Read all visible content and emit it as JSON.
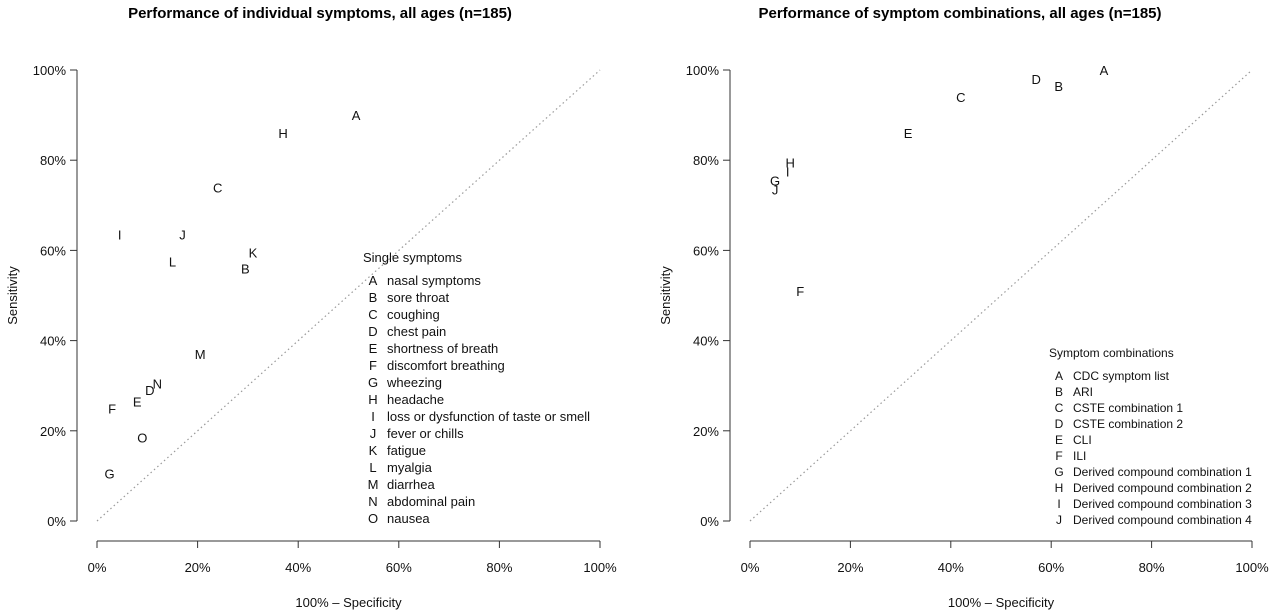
{
  "chart_data": [
    {
      "type": "scatter",
      "title": "Performance of individual symptoms, all ages (n=185)",
      "xlabel": "100% – Specificity",
      "ylabel": "Sensitivity",
      "xlim": [
        0,
        100
      ],
      "ylim": [
        0,
        100
      ],
      "x_ticks": [
        "0%",
        "20%",
        "40%",
        "60%",
        "80%",
        "100%"
      ],
      "y_ticks": [
        "0%",
        "20%",
        "40%",
        "60%",
        "80%",
        "100%"
      ],
      "reference_line": "diagonal dotted",
      "legend_placement": "bottom-right",
      "legend": {
        "title": "Single symptoms",
        "entries": [
          {
            "key": "A",
            "label": "nasal symptoms"
          },
          {
            "key": "B",
            "label": "sore throat"
          },
          {
            "key": "C",
            "label": "coughing"
          },
          {
            "key": "D",
            "label": "chest pain"
          },
          {
            "key": "E",
            "label": "shortness of breath"
          },
          {
            "key": "F",
            "label": "discomfort breathing"
          },
          {
            "key": "G",
            "label": "wheezing"
          },
          {
            "key": "H",
            "label": "headache"
          },
          {
            "key": "I",
            "label": "loss or dysfunction of taste or smell"
          },
          {
            "key": "J",
            "label": "fever or chills"
          },
          {
            "key": "K",
            "label": "fatigue"
          },
          {
            "key": "L",
            "label": "myalgia"
          },
          {
            "key": "M",
            "label": "diarrhea"
          },
          {
            "key": "N",
            "label": "abdominal  pain"
          },
          {
            "key": "O",
            "label": "nausea"
          }
        ]
      },
      "points": [
        {
          "label": "A",
          "x": 51.5,
          "y": 90
        },
        {
          "label": "B",
          "x": 29.5,
          "y": 56
        },
        {
          "label": "C",
          "x": 24,
          "y": 74
        },
        {
          "label": "D",
          "x": 10.5,
          "y": 29
        },
        {
          "label": "E",
          "x": 8,
          "y": 26.5
        },
        {
          "label": "F",
          "x": 3,
          "y": 25
        },
        {
          "label": "G",
          "x": 2.5,
          "y": 10.5
        },
        {
          "label": "H",
          "x": 37,
          "y": 86
        },
        {
          "label": "I",
          "x": 4.5,
          "y": 63.5
        },
        {
          "label": "J",
          "x": 17,
          "y": 63.5
        },
        {
          "label": "K",
          "x": 31,
          "y": 59.5
        },
        {
          "label": "L",
          "x": 15,
          "y": 57.5
        },
        {
          "label": "M",
          "x": 20.5,
          "y": 37
        },
        {
          "label": "N",
          "x": 12,
          "y": 30.5
        },
        {
          "label": "O",
          "x": 9,
          "y": 18.5
        }
      ]
    },
    {
      "type": "scatter",
      "title": "Performance of symptom combinations, all ages (n=185)",
      "xlabel": "100% – Specificity",
      "ylabel": "Sensitivity",
      "xlim": [
        0,
        100
      ],
      "ylim": [
        0,
        100
      ],
      "x_ticks": [
        "0%",
        "20%",
        "40%",
        "60%",
        "80%",
        "100%"
      ],
      "y_ticks": [
        "0%",
        "20%",
        "40%",
        "60%",
        "80%",
        "100%"
      ],
      "reference_line": "diagonal dotted",
      "legend_placement": "bottom-right",
      "legend": {
        "title": "Symptom combinations",
        "entries": [
          {
            "key": "A",
            "label": "CDC symptom list"
          },
          {
            "key": "B",
            "label": "ARI"
          },
          {
            "key": "C",
            "label": "CSTE combination 1"
          },
          {
            "key": "D",
            "label": "CSTE combination 2"
          },
          {
            "key": "E",
            "label": "CLI"
          },
          {
            "key": "F",
            "label": "ILI"
          },
          {
            "key": "G",
            "label": "Derived compound combination 1"
          },
          {
            "key": "H",
            "label": "Derived compound combination 2"
          },
          {
            "key": "I",
            "label": "Derived compound combination 3"
          },
          {
            "key": "J",
            "label": "Derived compound combination 4"
          }
        ]
      },
      "points": [
        {
          "label": "A",
          "x": 70.5,
          "y": 100
        },
        {
          "label": "B",
          "x": 61.5,
          "y": 96.5
        },
        {
          "label": "C",
          "x": 42,
          "y": 94
        },
        {
          "label": "D",
          "x": 57,
          "y": 98
        },
        {
          "label": "E",
          "x": 31.5,
          "y": 86
        },
        {
          "label": "F",
          "x": 10,
          "y": 51
        },
        {
          "label": "G",
          "x": 5,
          "y": 75.5
        },
        {
          "label": "H",
          "x": 8,
          "y": 79.5
        },
        {
          "label": "I",
          "x": 7.5,
          "y": 77.5
        },
        {
          "label": "J",
          "x": 5,
          "y": 73.5
        }
      ]
    }
  ]
}
